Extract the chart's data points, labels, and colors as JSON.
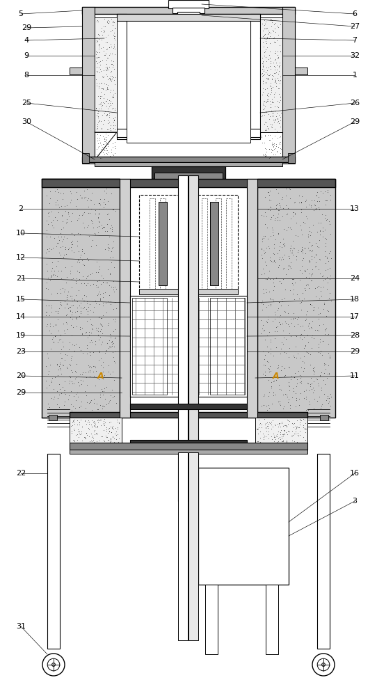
{
  "fig_width": 5.42,
  "fig_height": 10.0,
  "dpi": 100,
  "bg_color": "#ffffff",
  "lc": "#000000",
  "label_fontsize": 8.0
}
